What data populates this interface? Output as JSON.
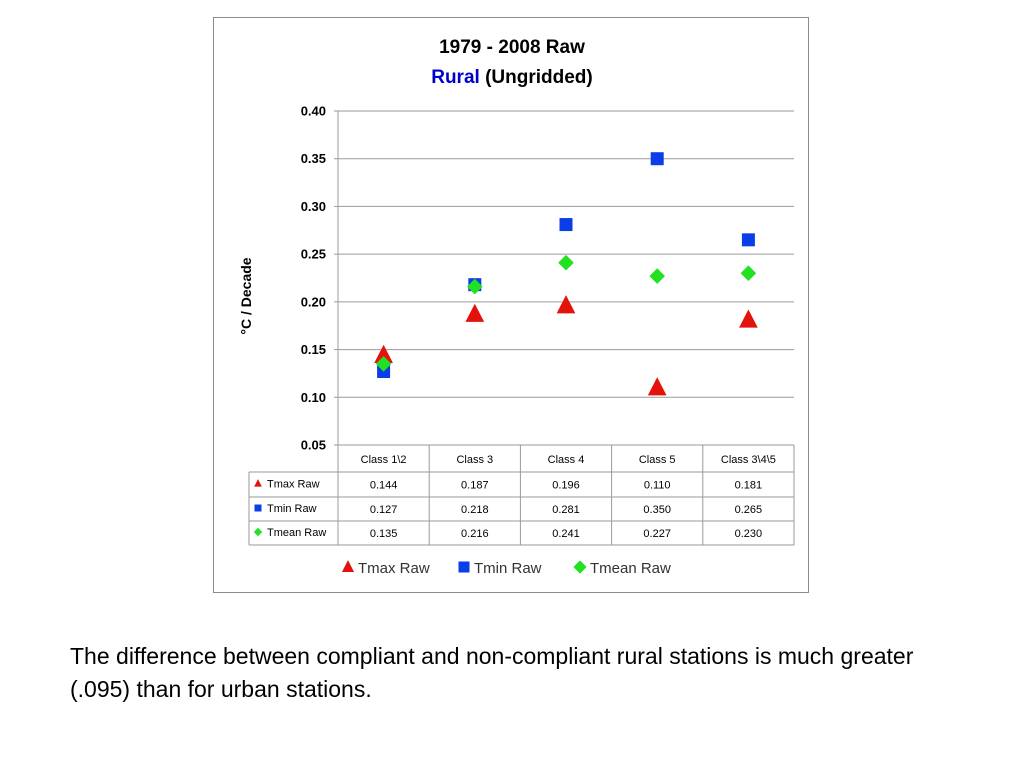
{
  "caption": "The difference between compliant and non-compliant rural stations is much greater (.095) than for urban stations.",
  "chart_data": {
    "type": "scatter",
    "title_line1": "1979 - 2008 Raw",
    "title_line2_highlight": "Rural",
    "title_line2_rest": " (Ungridded)",
    "title_highlight_color": "#0000cc",
    "ylabel": "°C / Decade",
    "ylim": [
      0.05,
      0.4
    ],
    "ytick_labels": [
      "0.40",
      "0.35",
      "0.30",
      "0.25",
      "0.20",
      "0.15",
      "0.10",
      "0.05"
    ],
    "yticks": [
      0.4,
      0.35,
      0.3,
      0.25,
      0.2,
      0.15,
      0.1,
      0.05
    ],
    "grid": true,
    "legend_position": "bottom",
    "categories": [
      "Class 1\\2",
      "Class 3",
      "Class 4",
      "Class 5",
      "Class 3\\4\\5"
    ],
    "series": [
      {
        "name": "Tmax Raw",
        "marker": "triangle",
        "color": "#e3120b",
        "values": [
          0.144,
          0.187,
          0.196,
          0.11,
          0.181
        ],
        "labels": [
          "0.144",
          "0.187",
          "0.196",
          "0.110",
          "0.181"
        ]
      },
      {
        "name": "Tmin Raw",
        "marker": "square",
        "color": "#0a3ee8",
        "values": [
          0.127,
          0.218,
          0.281,
          0.35,
          0.265
        ],
        "labels": [
          "0.127",
          "0.218",
          "0.281",
          "0.350",
          "0.265"
        ]
      },
      {
        "name": "Tmean Raw",
        "marker": "diamond",
        "color": "#22e022",
        "values": [
          0.135,
          0.216,
          0.241,
          0.227,
          0.23
        ],
        "labels": [
          "0.135",
          "0.216",
          "0.241",
          "0.227",
          "0.230"
        ]
      }
    ]
  }
}
